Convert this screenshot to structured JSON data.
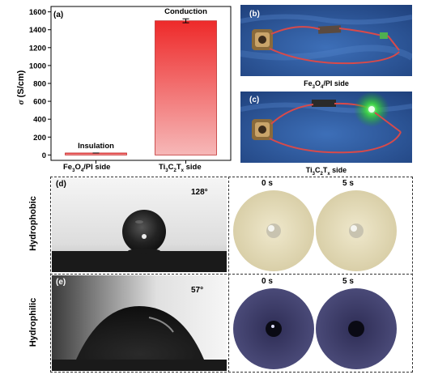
{
  "figure": {
    "panel_a": {
      "label": "(a)",
      "chart_data": {
        "type": "bar",
        "categories": [
          "Fe3O4/PI side",
          "Ti3C2Tx side"
        ],
        "category_display": [
          {
            "pre": "Fe",
            "sub1": "3",
            "mid": "O",
            "sub2": "4",
            "post": "/PI side"
          },
          {
            "pre": "Ti",
            "sub1": "3",
            "mid": "C",
            "sub2": "2",
            "post": "T",
            "sub3": "x",
            "post2": " side"
          }
        ],
        "values": [
          22,
          1500
        ],
        "error": [
          0,
          22
        ],
        "bar_labels": [
          "Insulation",
          "Conduction"
        ],
        "ylabel_symbol": "σ",
        "ylabel_unit": " (S/cm)",
        "ylim": [
          -60,
          1660
        ],
        "yticks": [
          "0",
          "200",
          "400",
          "600",
          "800",
          "1000",
          "1200",
          "1400",
          "1600"
        ],
        "colors": [
          "#ea3f3f",
          "#ea3f3f"
        ]
      }
    },
    "panel_b": {
      "label": "(b)",
      "caption_parts": [
        "Fe",
        "3",
        "O",
        "4",
        "/PI side"
      ]
    },
    "panel_c": {
      "label": "(c)",
      "caption_parts": [
        "Ti",
        "3",
        "C",
        "2",
        "T",
        "x",
        " side"
      ]
    },
    "panel_d": {
      "label": "(d)",
      "row_label": "Hydrophobic",
      "angle": "128°",
      "t0": "0 s",
      "t5": "5 s"
    },
    "panel_e": {
      "label": "(e)",
      "row_label": "Hydrophilic",
      "angle": "57°",
      "t0": "0 s",
      "t5": "5 s"
    }
  }
}
